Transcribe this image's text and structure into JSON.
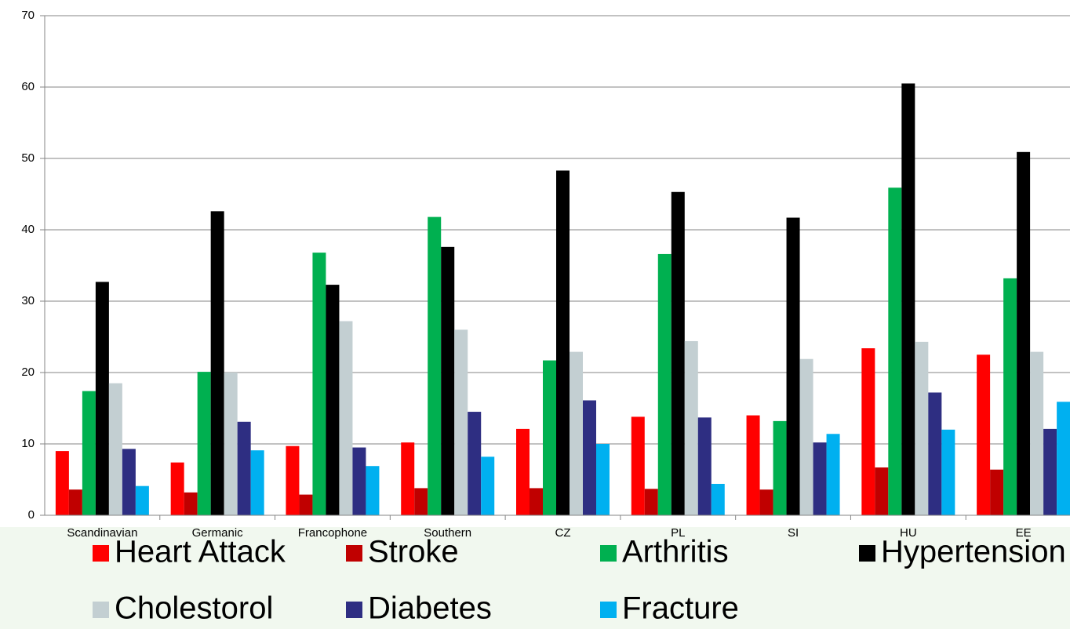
{
  "chart_data": {
    "type": "bar",
    "categories": [
      "Scandinavian",
      "Germanic",
      "Francophone",
      "Southern",
      "CZ",
      "PL",
      "SI",
      "HU",
      "EE"
    ],
    "series": [
      {
        "name": "Heart Attack",
        "color": "#ff0000",
        "values": [
          9.0,
          7.4,
          9.7,
          10.2,
          12.1,
          13.8,
          14.0,
          23.4,
          22.5
        ]
      },
      {
        "name": "Stroke",
        "color": "#c00000",
        "values": [
          3.6,
          3.2,
          2.9,
          3.8,
          3.8,
          3.7,
          3.6,
          6.7,
          6.4
        ]
      },
      {
        "name": "Arthritis",
        "color": "#00b050",
        "values": [
          17.4,
          20.1,
          36.8,
          41.8,
          21.7,
          36.6,
          13.2,
          45.9,
          33.2
        ]
      },
      {
        "name": "Hypertension",
        "color": "#000000",
        "values": [
          32.7,
          42.6,
          32.3,
          37.6,
          48.3,
          45.3,
          41.7,
          60.5,
          50.9
        ]
      },
      {
        "name": "Cholestorol",
        "color": "#c3cfd2",
        "values": [
          18.5,
          20.0,
          27.2,
          26.0,
          22.9,
          24.4,
          21.9,
          24.3,
          22.9
        ]
      },
      {
        "name": "Diabetes",
        "color": "#2e2e82",
        "values": [
          9.3,
          13.1,
          9.5,
          14.5,
          16.1,
          13.7,
          10.2,
          17.2,
          12.1
        ]
      },
      {
        "name": "Fracture",
        "color": "#00b0f0",
        "values": [
          4.1,
          9.1,
          6.9,
          8.2,
          10.0,
          4.4,
          11.4,
          12.0,
          15.9
        ]
      }
    ],
    "ylim": [
      0,
      70
    ],
    "yticks": [
      0,
      10,
      20,
      30,
      40,
      50,
      60,
      70
    ],
    "grid": true,
    "legend": "bottom"
  }
}
